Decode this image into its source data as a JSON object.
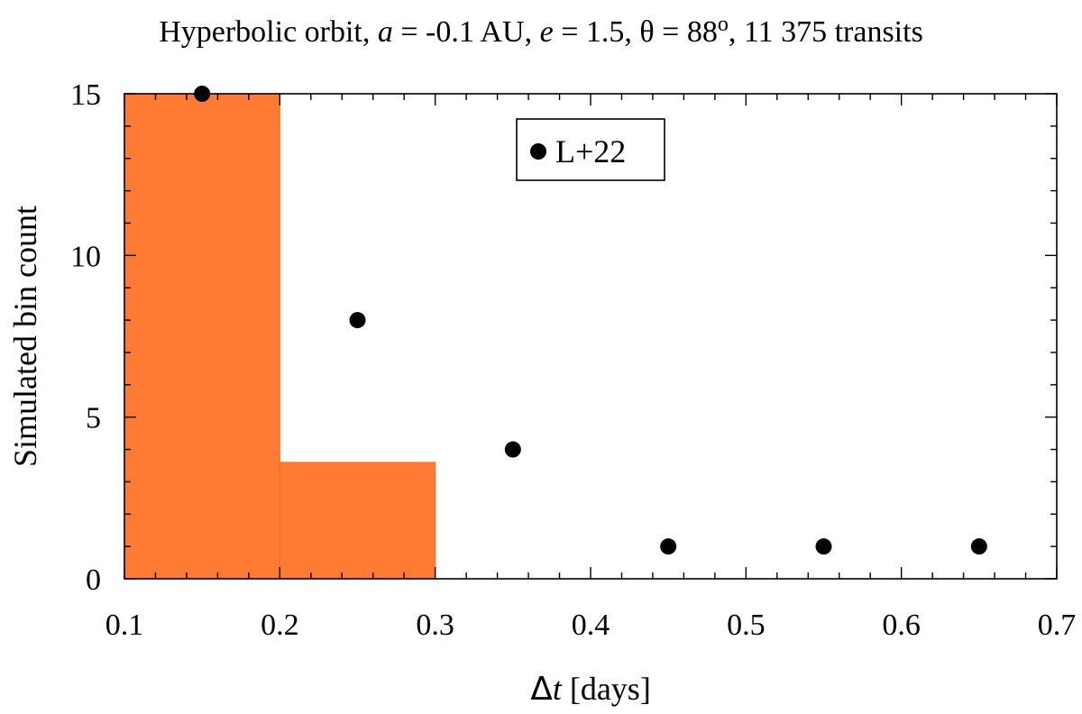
{
  "chart_data": {
    "type": "bar",
    "title": {
      "prefix": "Hyperbolic orbit, ",
      "a_symbol": "a",
      "a_text": " = -0.1 AU, ",
      "e_symbol": "e",
      "e_text": " = 1.5, θ = 88",
      "degree": "o",
      "suffix": ", 11 375 transits"
    },
    "xlabel": {
      "delta": "Δ",
      "t": "t",
      "units": " [days]"
    },
    "ylabel": "Simulated bin count",
    "xlim": [
      0.1,
      0.7
    ],
    "ylim": [
      0,
      15
    ],
    "x_ticks": [
      0.1,
      0.2,
      0.3,
      0.4,
      0.5,
      0.6,
      0.7
    ],
    "x_tick_labels": [
      "0.1",
      "0.2",
      "0.3",
      "0.4",
      "0.5",
      "0.6",
      "0.7"
    ],
    "y_ticks": [
      0,
      5,
      10,
      15
    ],
    "y_tick_labels": [
      "0",
      "5",
      "10",
      "15"
    ],
    "histogram": {
      "color": "#ff7a33",
      "bins": [
        {
          "x0": 0.1,
          "x1": 0.2,
          "value": 15
        },
        {
          "x0": 0.2,
          "x1": 0.3,
          "value": 3.6
        }
      ]
    },
    "series": [
      {
        "name": "L+22",
        "marker": "circle",
        "color": "#000000",
        "points": [
          {
            "x": 0.15,
            "y": 15
          },
          {
            "x": 0.25,
            "y": 8
          },
          {
            "x": 0.35,
            "y": 4
          },
          {
            "x": 0.45,
            "y": 1
          },
          {
            "x": 0.55,
            "y": 1
          },
          {
            "x": 0.65,
            "y": 1
          }
        ]
      }
    ],
    "legend_position": "top-center",
    "grid": false
  }
}
